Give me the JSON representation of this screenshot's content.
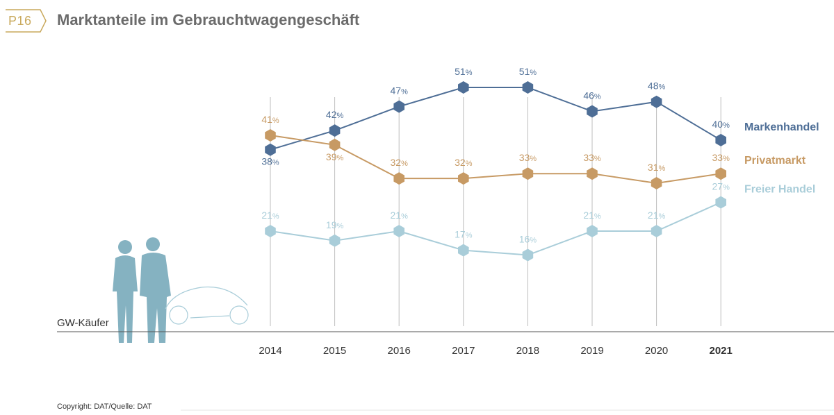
{
  "header": {
    "page_badge": "P16",
    "title": "Marktanteile im Gebrauchtwagengeschäft"
  },
  "left_label": "GW-Käufer",
  "footer": {
    "copyright": "Copyright: DAT/Quelle: DAT"
  },
  "colors": {
    "accent": "#c9a95c",
    "markenhandel": "#4e6e96",
    "privatmarkt": "#c79a64",
    "freier_handel": "#a9cdd9",
    "grid": "#bdbdbd",
    "silhouette": "#85b2c1"
  },
  "chart_data": {
    "type": "line",
    "x": [
      "2014",
      "2015",
      "2016",
      "2017",
      "2018",
      "2019",
      "2020",
      "2021"
    ],
    "highlight_x": "2021",
    "value_suffix": "%",
    "series": [
      {
        "name": "Markenhandel",
        "key": "markenhandel",
        "values": [
          38,
          42,
          47,
          51,
          51,
          46,
          48,
          40
        ]
      },
      {
        "name": "Privatmarkt",
        "key": "privatmarkt",
        "values": [
          41,
          39,
          32,
          32,
          33,
          33,
          31,
          33
        ]
      },
      {
        "name": "Freier Handel",
        "key": "freier_handel",
        "values": [
          21,
          19,
          21,
          17,
          16,
          21,
          21,
          27
        ]
      }
    ]
  }
}
